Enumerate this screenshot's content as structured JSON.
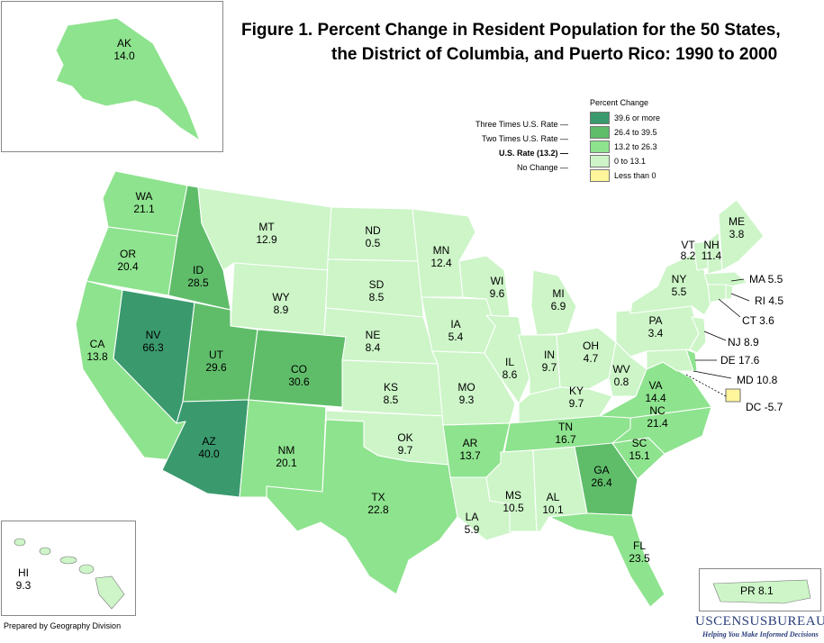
{
  "title": {
    "line1": "Figure 1.  Percent Change in Resident Population for the 50 States,",
    "line2": "the District of Columbia, and Puerto Rico: 1990 to 2000"
  },
  "legend": {
    "title": "Percent Change",
    "classes": [
      {
        "range": "39.6 or more",
        "note": "Three Times U.S. Rate",
        "color": "#3a9a6e"
      },
      {
        "range": "26.4 to 39.5",
        "note": "Two Times U.S. Rate",
        "color": "#5fbd6a"
      },
      {
        "range": "13.2 to 26.3",
        "note": "U.S. Rate (13.2)",
        "color": "#8ee38e"
      },
      {
        "range": "0 to 13.1",
        "note": "No Change",
        "color": "#cdf5c8"
      },
      {
        "range": "Less than 0",
        "note": "",
        "color": "#fff59a"
      }
    ]
  },
  "states": {
    "WA": {
      "abbr": "WA",
      "value": "21.1"
    },
    "OR": {
      "abbr": "OR",
      "value": "20.4"
    },
    "CA": {
      "abbr": "CA",
      "value": "13.8"
    },
    "NV": {
      "abbr": "NV",
      "value": "66.3"
    },
    "ID": {
      "abbr": "ID",
      "value": "28.5"
    },
    "MT": {
      "abbr": "MT",
      "value": "12.9"
    },
    "WY": {
      "abbr": "WY",
      "value": "8.9"
    },
    "UT": {
      "abbr": "UT",
      "value": "29.6"
    },
    "CO": {
      "abbr": "CO",
      "value": "30.6"
    },
    "AZ": {
      "abbr": "AZ",
      "value": "40.0"
    },
    "NM": {
      "abbr": "NM",
      "value": "20.1"
    },
    "ND": {
      "abbr": "ND",
      "value": "0.5"
    },
    "SD": {
      "abbr": "SD",
      "value": "8.5"
    },
    "NE": {
      "abbr": "NE",
      "value": "8.4"
    },
    "KS": {
      "abbr": "KS",
      "value": "8.5"
    },
    "OK": {
      "abbr": "OK",
      "value": "9.7"
    },
    "TX": {
      "abbr": "TX",
      "value": "22.8"
    },
    "MN": {
      "abbr": "MN",
      "value": "12.4"
    },
    "IA": {
      "abbr": "IA",
      "value": "5.4"
    },
    "MO": {
      "abbr": "MO",
      "value": "9.3"
    },
    "AR": {
      "abbr": "AR",
      "value": "13.7"
    },
    "LA": {
      "abbr": "LA",
      "value": "5.9"
    },
    "WI": {
      "abbr": "WI",
      "value": "9.6"
    },
    "IL": {
      "abbr": "IL",
      "value": "8.6"
    },
    "MS": {
      "abbr": "MS",
      "value": "10.5"
    },
    "MI": {
      "abbr": "MI",
      "value": "6.9"
    },
    "IN": {
      "abbr": "IN",
      "value": "9.7"
    },
    "KY": {
      "abbr": "KY",
      "value": "9.7"
    },
    "TN": {
      "abbr": "TN",
      "value": "16.7"
    },
    "AL": {
      "abbr": "AL",
      "value": "10.1"
    },
    "OH": {
      "abbr": "OH",
      "value": "4.7"
    },
    "WV": {
      "abbr": "WV",
      "value": "0.8"
    },
    "GA": {
      "abbr": "GA",
      "value": "26.4"
    },
    "FL": {
      "abbr": "FL",
      "value": "23.5"
    },
    "SC": {
      "abbr": "SC",
      "value": "15.1"
    },
    "NC": {
      "abbr": "NC",
      "value": "21.4"
    },
    "VA": {
      "abbr": "VA",
      "value": "14.4"
    },
    "PA": {
      "abbr": "PA",
      "value": "3.4"
    },
    "NY": {
      "abbr": "NY",
      "value": "5.5"
    },
    "VT": {
      "abbr": "VT",
      "value": "8.2"
    },
    "NH": {
      "abbr": "NH",
      "value": "11.4"
    },
    "ME": {
      "abbr": "ME",
      "value": "3.8"
    },
    "MA": {
      "abbr": "MA",
      "value": "5.5"
    },
    "RI": {
      "abbr": "RI",
      "value": "4.5"
    },
    "CT": {
      "abbr": "CT",
      "value": "3.6"
    },
    "NJ": {
      "abbr": "NJ",
      "value": "8.9"
    },
    "DE": {
      "abbr": "DE",
      "value": "17.6"
    },
    "MD": {
      "abbr": "MD",
      "value": "10.8"
    },
    "DC": {
      "abbr": "DC",
      "value": "-5.7"
    },
    "AK": {
      "abbr": "AK",
      "value": "14.0"
    },
    "HI": {
      "abbr": "HI",
      "value": "9.3"
    },
    "PR": {
      "abbr": "PR",
      "value": "8.1"
    }
  },
  "footer": {
    "prepared_by": "Prepared by Geography Division",
    "brand": "USCENSUSBUREAU",
    "tagline": "Helping You Make Informed Decisions"
  }
}
